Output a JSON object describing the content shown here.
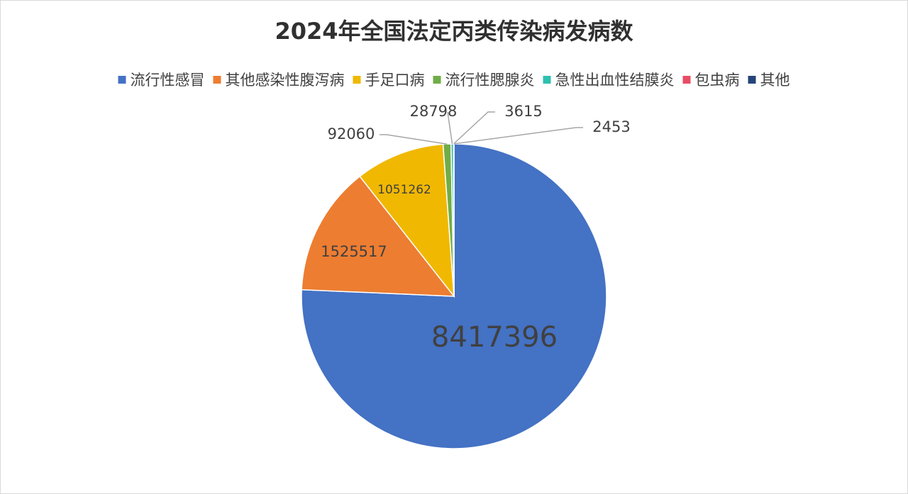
{
  "chart_data": {
    "type": "pie",
    "title": "2024年全国法定丙类传染病发病数",
    "categories": [
      "流行性感冒",
      "其他感染性腹泻病",
      "手足口病",
      "流行性腮腺炎",
      "急性出血性结膜炎",
      "包虫病",
      "其他"
    ],
    "values": [
      8417396,
      1525517,
      1051262,
      92060,
      28798,
      3615,
      2453
    ],
    "colors": [
      "#4472c4",
      "#ed7d31",
      "#f0b800",
      "#70ad47",
      "#2fbfb0",
      "#e84c64",
      "#264478"
    ],
    "legend": "top"
  }
}
